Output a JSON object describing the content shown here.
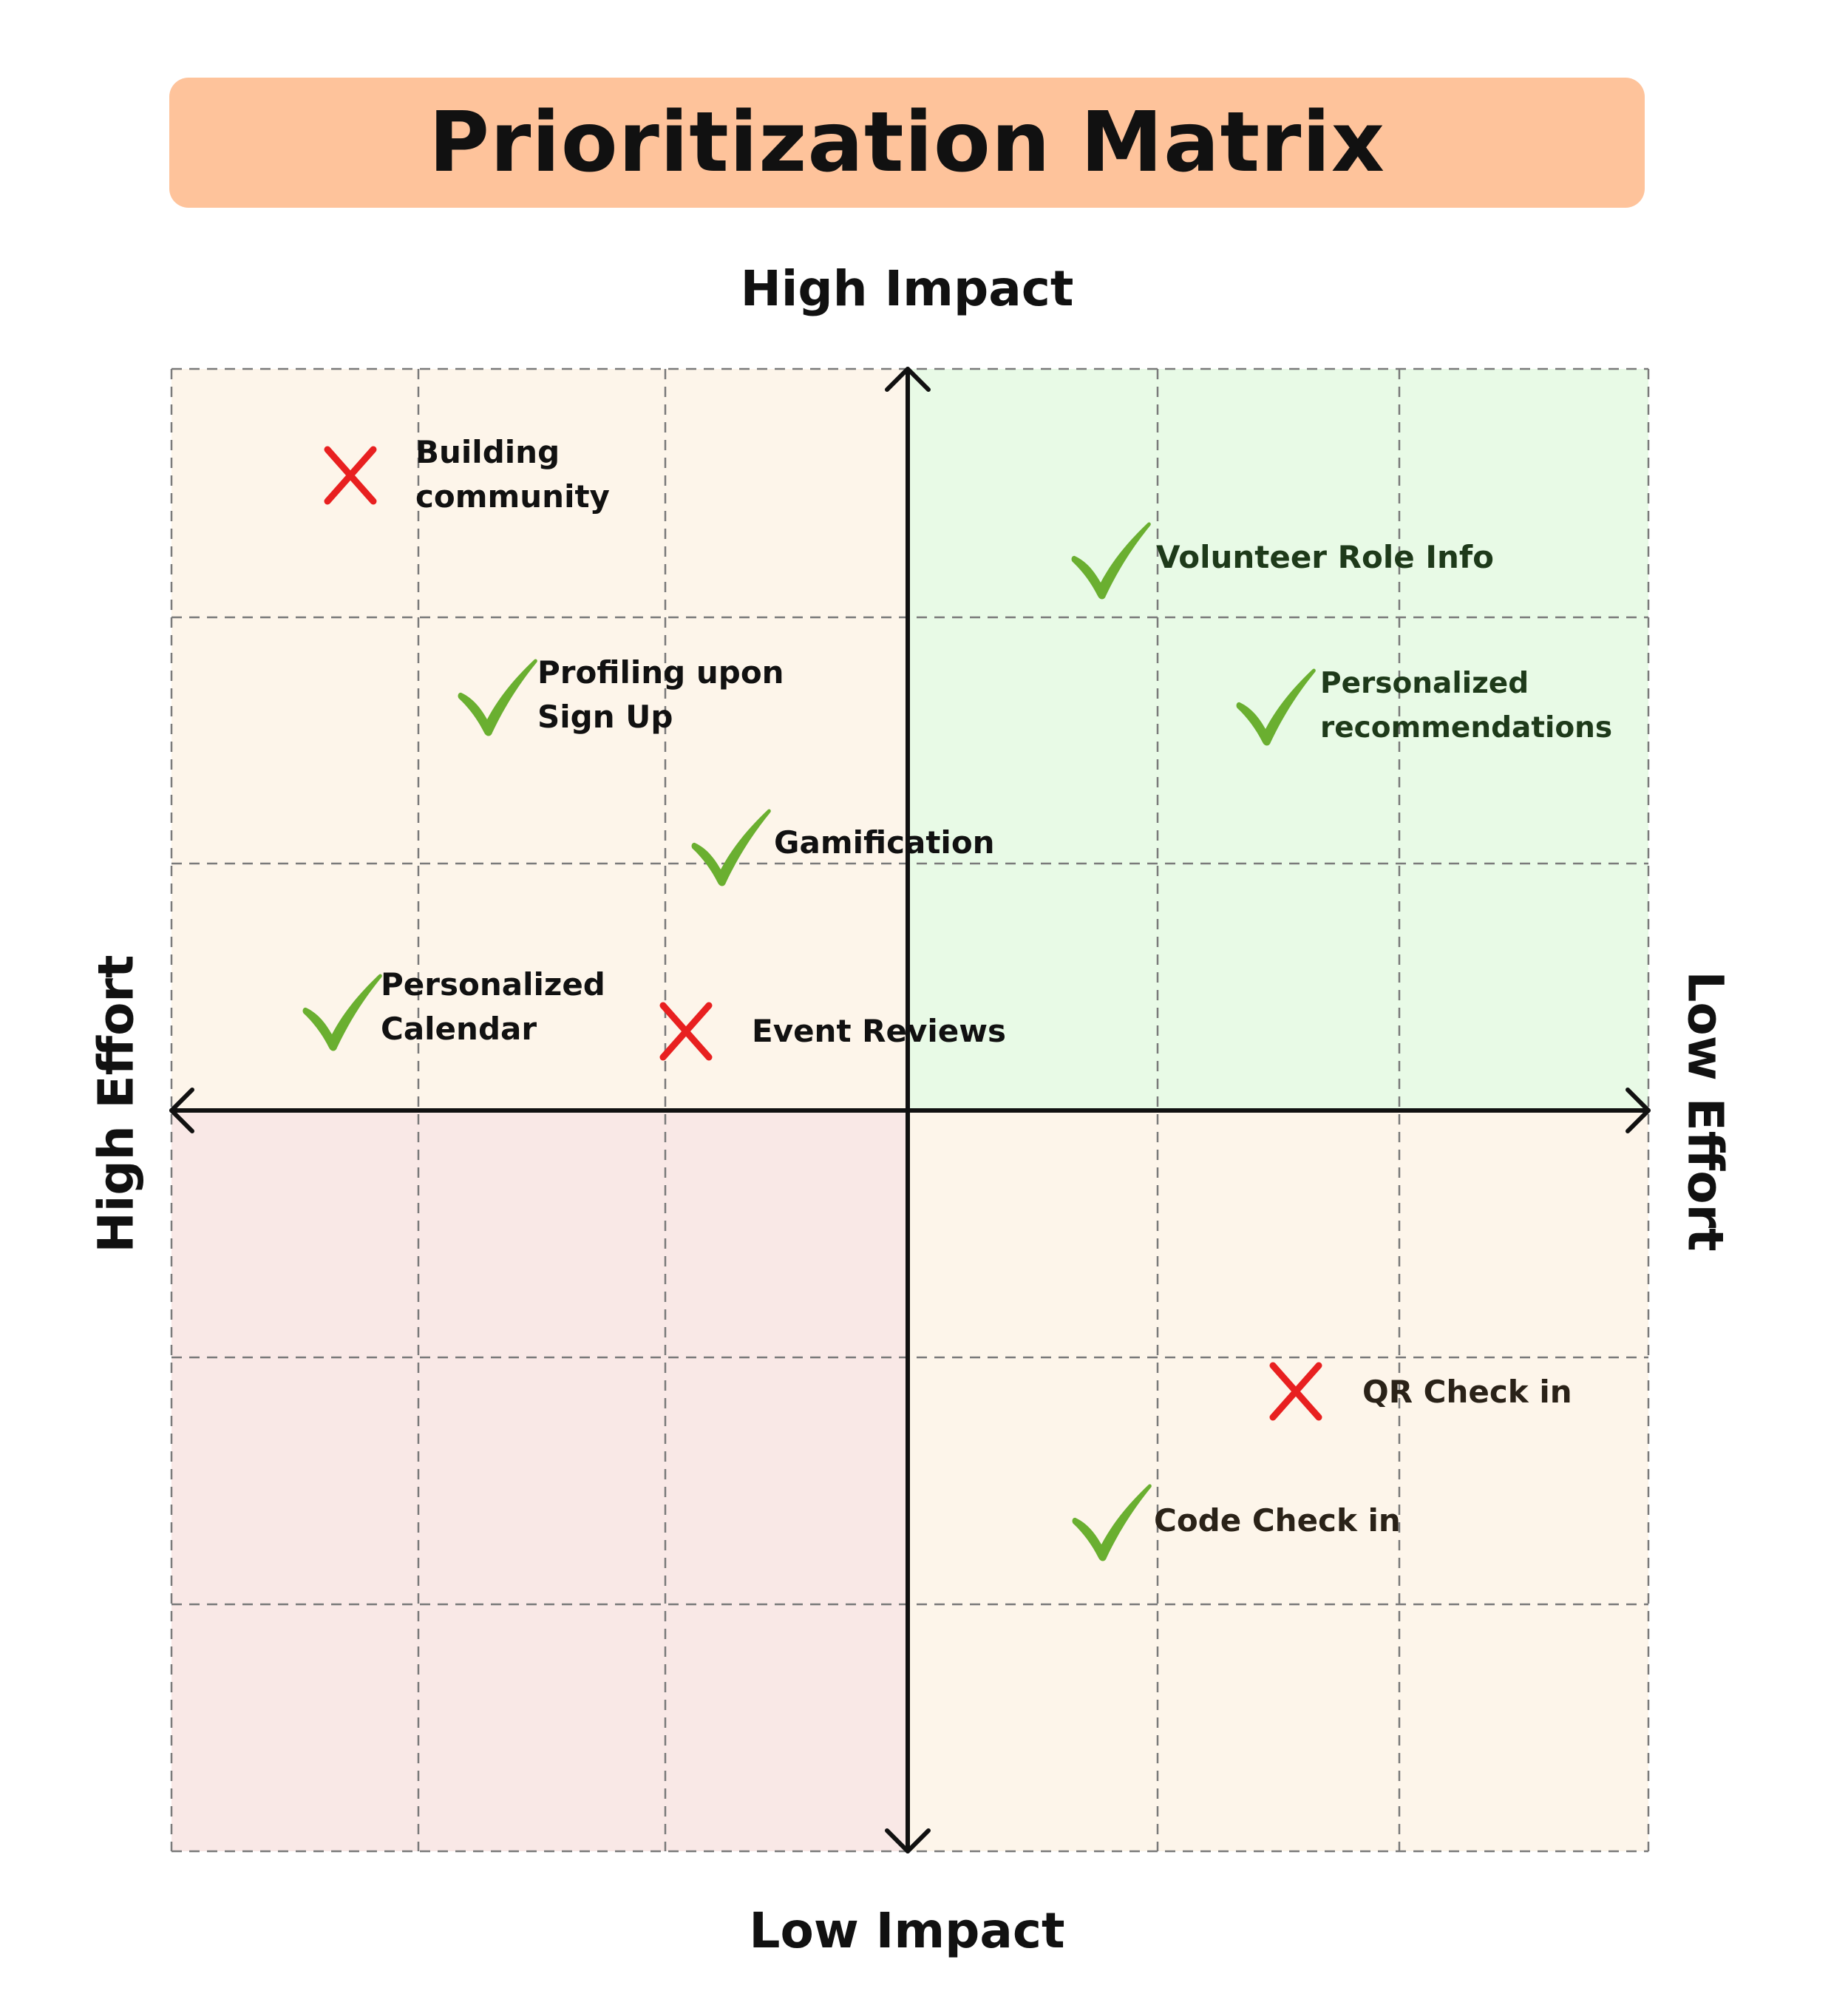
{
  "title": "Prioritization Matrix",
  "axes": {
    "top": "High Impact",
    "bottom": "Low Impact",
    "left": "High Effort",
    "right": "Low Effort"
  },
  "colors": {
    "title_bg": "#fec39b",
    "quick_wins": "#e8fae6",
    "major_projects": "#fdf5ea",
    "fill_ins": "#fdf5ea",
    "thankless_tasks": "#f9e8e6",
    "check": "#6aaf30",
    "cross": "#e82020"
  },
  "items": [
    {
      "id": "building-community",
      "label": [
        "Building",
        "community"
      ],
      "mark": "cross"
    },
    {
      "id": "volunteer-role-info",
      "label": [
        "Volunteer Role Info"
      ],
      "mark": "check"
    },
    {
      "id": "profiling-upon-sign-up",
      "label": [
        "Profiling upon",
        "Sign Up"
      ],
      "mark": "check"
    },
    {
      "id": "personalized-recommendations",
      "label": [
        "Personalized",
        "recommendations"
      ],
      "mark": "check"
    },
    {
      "id": "gamification",
      "label": [
        "Gamification"
      ],
      "mark": "check"
    },
    {
      "id": "personalized-calendar",
      "label": [
        "Personalized",
        "Calendar"
      ],
      "mark": "check"
    },
    {
      "id": "event-reviews",
      "label": [
        "Event Reviews"
      ],
      "mark": "cross"
    },
    {
      "id": "qr-check-in",
      "label": [
        "QR Check in"
      ],
      "mark": "cross"
    },
    {
      "id": "code-check-in",
      "label": [
        "Code Check in"
      ],
      "mark": "check"
    }
  ]
}
